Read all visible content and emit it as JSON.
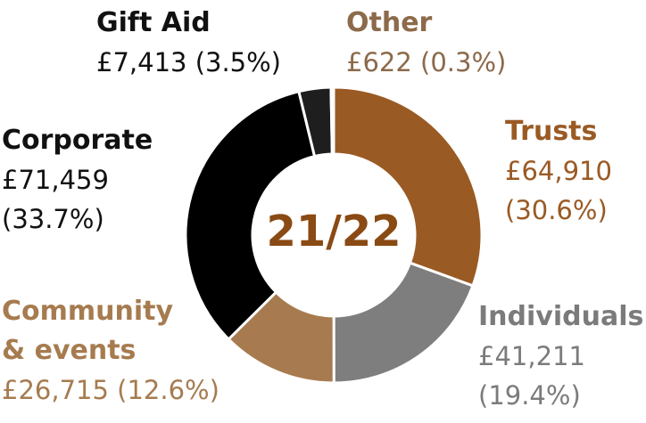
{
  "chart_data": {
    "type": "pie",
    "center_label": "21/22",
    "categories": [
      "Trusts",
      "Individuals",
      "Community & events",
      "Corporate",
      "Gift Aid",
      "Other"
    ],
    "values": [
      64910,
      41211,
      26715,
      71459,
      7413,
      622
    ],
    "percentages": [
      30.6,
      19.4,
      12.6,
      33.7,
      3.5,
      0.3
    ],
    "colors": [
      "#9a5a24",
      "#7e7e7e",
      "#a77b4f",
      "#000000",
      "#1e1e1e",
      "#8a8a8a"
    ],
    "labels": {
      "trusts": {
        "name": "Trusts",
        "amount": "£64,910",
        "pct": "(30.6%)",
        "color": "#9a5a24"
      },
      "individuals": {
        "name": "Individuals",
        "amount": "£41,211",
        "pct": "(19.4%)",
        "color": "#7b7b7b"
      },
      "community": {
        "name_line1": "Community",
        "name_line2": "& events",
        "value": "£26,715 (12.6%)",
        "color": "#a67b4f"
      },
      "corporate": {
        "name": "Corporate",
        "amount": "£71,459",
        "pct": "(33.7%)",
        "color": "#111111"
      },
      "gift_aid": {
        "name": "Gift Aid",
        "value": "£7,413 (3.5%)",
        "color": "#111111"
      },
      "other": {
        "name": "Other",
        "value": "£622 (0.3%)",
        "color": "#8c6a4a"
      }
    }
  }
}
